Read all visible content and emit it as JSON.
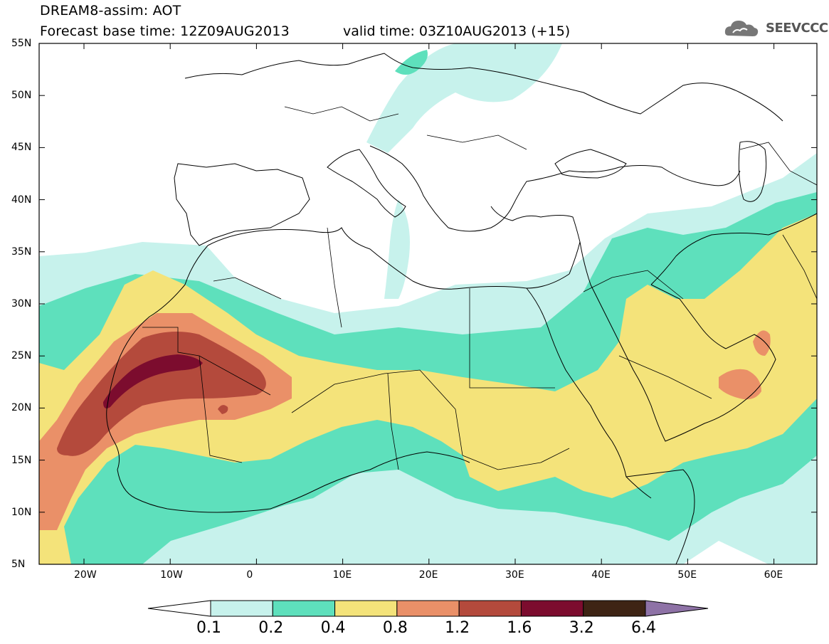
{
  "title": {
    "line1": "DREAM8-assim: AOT",
    "line2": "Forecast base time: 12Z09AUG2013",
    "valid": "valid time: 03Z10AUG2013 (+15)"
  },
  "logo": {
    "text": "SEEVCCC",
    "icon": "cloud-icon"
  },
  "axes": {
    "lat_labels": [
      "55N",
      "50N",
      "45N",
      "40N",
      "35N",
      "30N",
      "25N",
      "20N",
      "15N",
      "10N",
      "5N"
    ],
    "lon_labels": [
      "20W",
      "10W",
      "0",
      "10E",
      "20E",
      "30E",
      "40E",
      "50E",
      "60E"
    ]
  },
  "colorbar": {
    "labels": [
      "0.1",
      "0.2",
      "0.4",
      "0.8",
      "1.2",
      "1.6",
      "3.2",
      "6.4"
    ],
    "colors": [
      "#ffffff",
      "#c7f2ec",
      "#5ee0bc",
      "#f4e37a",
      "#ea9068",
      "#b44a3c",
      "#7c0c2e",
      "#3e2414",
      "#8e72a6"
    ]
  },
  "palette": {
    "lt01": "#c7f2ec",
    "c02": "#5ee0bc",
    "c04": "#f4e37a",
    "c08": "#ea9068",
    "c12": "#b44a3c",
    "c16": "#7c0c2e"
  }
}
